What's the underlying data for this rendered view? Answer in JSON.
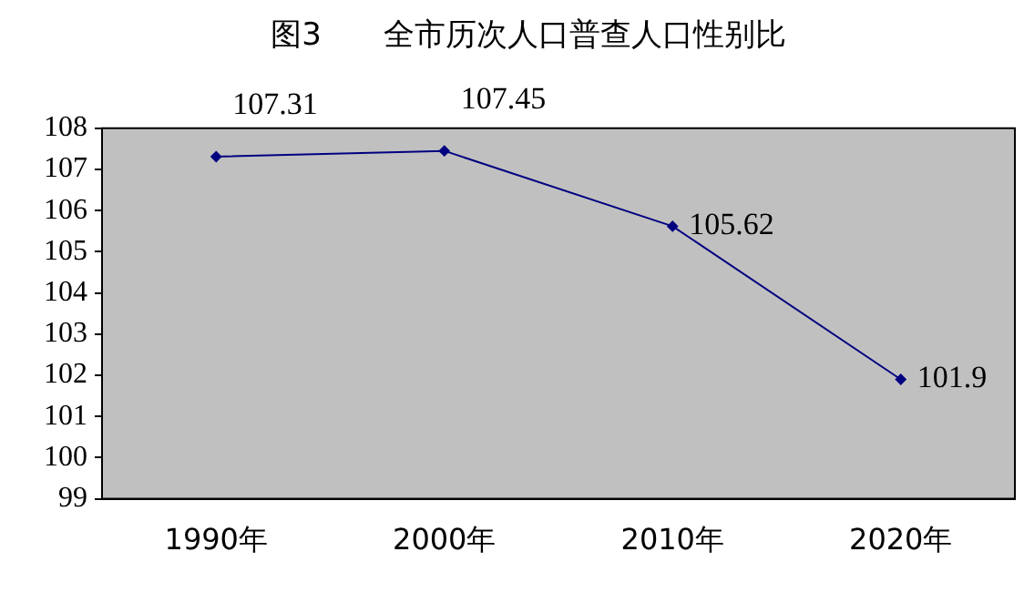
{
  "chart_data": {
    "type": "line",
    "title": "图3　　全市历次人口普查人口性别比",
    "categories": [
      "1990年",
      "2000年",
      "2010年",
      "2020年"
    ],
    "series": [
      {
        "color": "#000080",
        "values": [
          107.31,
          107.45,
          105.62,
          101.9
        ]
      }
    ],
    "ylim": [
      99,
      108
    ],
    "yticks": [
      99,
      100,
      101,
      102,
      103,
      104,
      105,
      106,
      107,
      108
    ],
    "legend": false,
    "marker": "diamond",
    "line_style": "solid",
    "data_labels": true
  }
}
